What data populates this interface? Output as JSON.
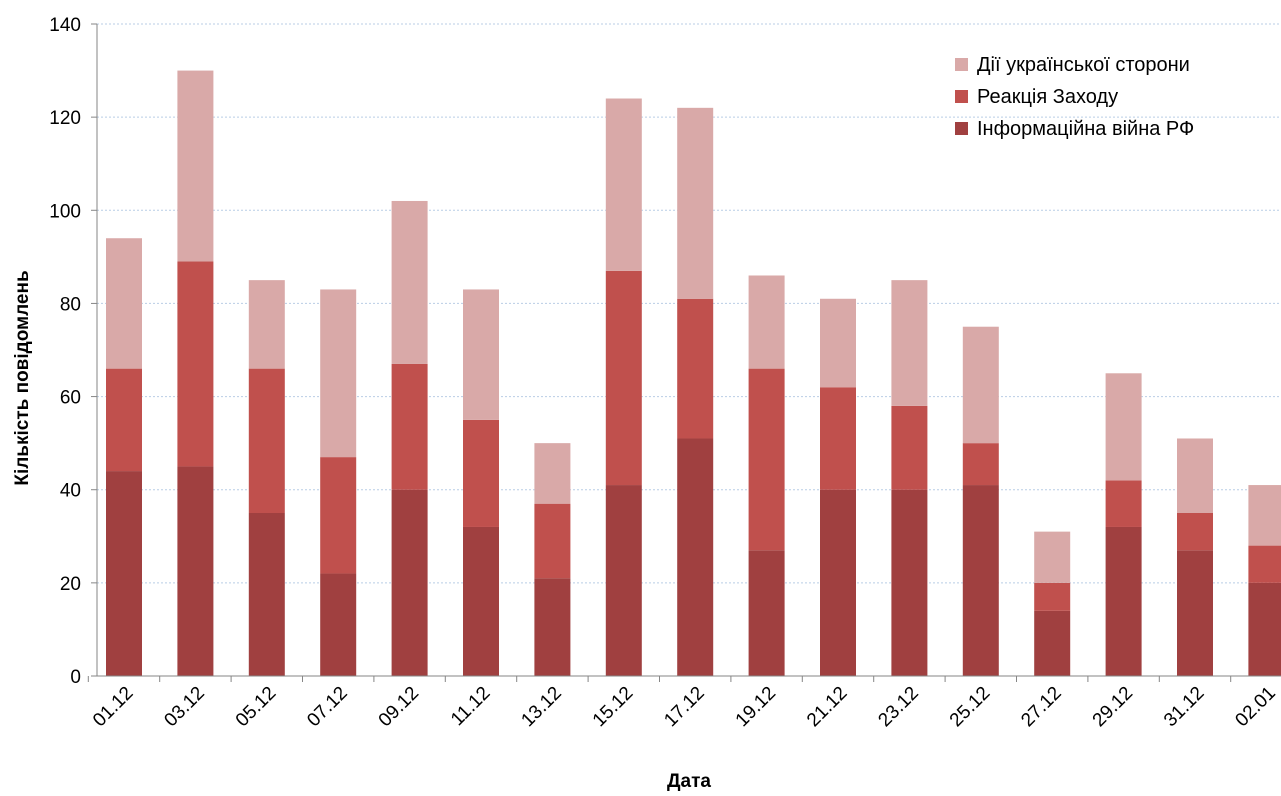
{
  "chart_data": {
    "type": "bar",
    "stacked": true,
    "title": "",
    "xlabel": "Дата",
    "ylabel": "Кількість повідомлень",
    "ylim": [
      0,
      140
    ],
    "yticks": [
      "0",
      "20",
      "40",
      "60",
      "80",
      "100",
      "120",
      "140"
    ],
    "grid": true,
    "legend_position": "top-right",
    "categories": [
      "01.12",
      "03.12",
      "05.12",
      "07.12",
      "09.12",
      "11.12",
      "13.12",
      "15.12",
      "17.12",
      "19.12",
      "21.12",
      "23.12",
      "25.12",
      "27.12",
      "29.12",
      "31.12",
      "02.01"
    ],
    "series": [
      {
        "name": "Інформаційна війна РФ",
        "color": "#a04040",
        "values": [
          44,
          45,
          35,
          22,
          40,
          32,
          21,
          41,
          51,
          27,
          40,
          40,
          41,
          14,
          32,
          27,
          20
        ]
      },
      {
        "name": "Реакція Заходу",
        "color": "#c0504d",
        "values": [
          22,
          44,
          31,
          25,
          27,
          23,
          16,
          46,
          30,
          39,
          22,
          18,
          9,
          6,
          10,
          8,
          8
        ]
      },
      {
        "name": "Дії української сторони",
        "color": "#d9a9a8",
        "values": [
          28,
          41,
          19,
          36,
          35,
          28,
          13,
          37,
          41,
          20,
          19,
          27,
          25,
          11,
          23,
          16,
          13
        ]
      }
    ],
    "legend": [
      {
        "name": "Дії української сторони",
        "color": "#d9a9a8"
      },
      {
        "name": "Реакція Заходу",
        "color": "#c0504d"
      },
      {
        "name": "Інформаційна війна РФ",
        "color": "#a04040"
      }
    ]
  }
}
